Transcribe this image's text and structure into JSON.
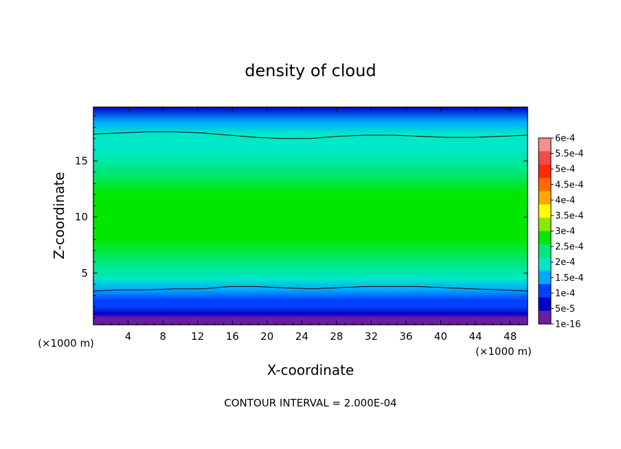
{
  "chart_data": {
    "type": "heatmap",
    "title": "density of cloud",
    "xlabel": "X-coordinate",
    "ylabel": "Z-coordinate",
    "x_unit": "(×1000 m)",
    "y_unit": "(×1000 m)",
    "xlim": [
      0,
      50
    ],
    "ylim": [
      0.4,
      19.8
    ],
    "x_ticks": [
      "4",
      "8",
      "12",
      "16",
      "20",
      "24",
      "28",
      "32",
      "36",
      "40",
      "44",
      "48"
    ],
    "x_tick_values": [
      4,
      8,
      12,
      16,
      20,
      24,
      28,
      32,
      36,
      40,
      44,
      48
    ],
    "y_ticks": [
      "5",
      "10",
      "15"
    ],
    "y_tick_values": [
      5,
      10,
      15
    ],
    "colorbar": {
      "labels": [
        "6e-4",
        "5.5e-4",
        "5e-4",
        "4.5e-4",
        "4e-4",
        "3.5e-4",
        "3e-4",
        "2.5e-4",
        "2e-4",
        "1.5e-4",
        "1e-4",
        "5e-5",
        "1e-16"
      ],
      "colors": [
        "#f39090",
        "#f04a4a",
        "#ff2a00",
        "#ff6a00",
        "#ffa800",
        "#ffff00",
        "#8fe800",
        "#00e800",
        "#00e87a",
        "#00e8c8",
        "#00a8ff",
        "#0040ff",
        "#0000c8",
        "#6a1fa0"
      ]
    },
    "vertical_profile": [
      {
        "z": 0.4,
        "v": 0.0
      },
      {
        "z": 1.0,
        "v": 2e-05
      },
      {
        "z": 1.4,
        "v": 6e-05
      },
      {
        "z": 2.0,
        "v": 0.0001
      },
      {
        "z": 2.6,
        "v": 0.000135
      },
      {
        "z": 3.5,
        "v": 0.00018
      },
      {
        "z": 4.5,
        "v": 0.00022
      },
      {
        "z": 6.0,
        "v": 0.00026
      },
      {
        "z": 8.0,
        "v": 0.00029
      },
      {
        "z": 10.0,
        "v": 0.00031
      },
      {
        "z": 12.0,
        "v": 0.000305
      },
      {
        "z": 14.0,
        "v": 0.000275
      },
      {
        "z": 16.0,
        "v": 0.00023
      },
      {
        "z": 17.4,
        "v": 0.0002
      },
      {
        "z": 18.5,
        "v": 0.00014
      },
      {
        "z": 19.8,
        "v": 5e-05
      }
    ],
    "contour_level": 0.0002,
    "contour_lower_z": [
      3.4,
      3.5,
      3.5,
      3.6,
      3.6,
      3.8,
      3.8,
      3.7,
      3.6,
      3.7,
      3.8,
      3.8,
      3.8,
      3.7,
      3.6,
      3.5,
      3.4
    ],
    "contour_upper_z": [
      17.4,
      17.5,
      17.6,
      17.6,
      17.5,
      17.3,
      17.1,
      17.0,
      17.0,
      17.2,
      17.3,
      17.3,
      17.2,
      17.1,
      17.1,
      17.2,
      17.3
    ],
    "contour_x": [
      0,
      3.125,
      6.25,
      9.375,
      12.5,
      15.625,
      18.75,
      21.875,
      25,
      28.125,
      31.25,
      34.375,
      37.5,
      40.625,
      43.75,
      46.875,
      50
    ]
  },
  "footer": {
    "x_unit_left": "(×1000 m)",
    "x_unit_right": "(×1000 m)",
    "contour_interval": "CONTOUR INTERVAL = 2.000E-04"
  }
}
